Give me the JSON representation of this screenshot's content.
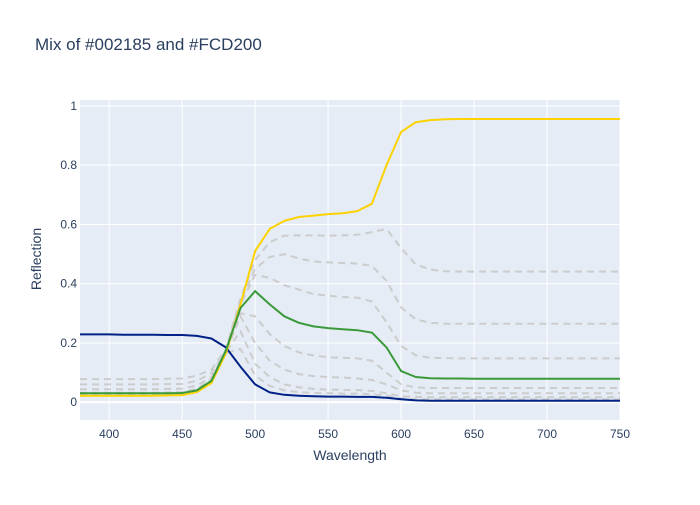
{
  "chart_data": {
    "type": "line",
    "title": "Mix of #002185 and #FCD200",
    "xlabel": "Wavelength",
    "ylabel": "Reflection",
    "xlim": [
      380,
      750
    ],
    "ylim": [
      -0.06,
      1.02
    ],
    "x_ticks": [
      400,
      450,
      500,
      550,
      600,
      650,
      700,
      750
    ],
    "y_ticks": [
      0,
      0.2,
      0.4,
      0.6,
      0.8,
      1
    ],
    "y_tick_labels": [
      "0",
      "0.2",
      "0.4",
      "0.6",
      "0.8",
      "1"
    ],
    "x": [
      380,
      390,
      400,
      410,
      420,
      430,
      440,
      450,
      460,
      470,
      480,
      490,
      500,
      510,
      520,
      530,
      540,
      550,
      560,
      570,
      580,
      590,
      600,
      610,
      620,
      630,
      640,
      650,
      660,
      670,
      680,
      690,
      700,
      710,
      720,
      730,
      740,
      750
    ],
    "background": "#e5ecf6",
    "grid": true,
    "legend": "none",
    "series": [
      {
        "role": "endpoint",
        "color": "#002185",
        "dash": false,
        "values": [
          0.229,
          0.229,
          0.229,
          0.228,
          0.228,
          0.228,
          0.227,
          0.227,
          0.224,
          0.215,
          0.185,
          0.12,
          0.06,
          0.033,
          0.025,
          0.022,
          0.02,
          0.019,
          0.019,
          0.018,
          0.018,
          0.015,
          0.01,
          0.006,
          0.005,
          0.005,
          0.005,
          0.005,
          0.005,
          0.005,
          0.005,
          0.005,
          0.005,
          0.005,
          0.005,
          0.005,
          0.005,
          0.005
        ]
      },
      {
        "role": "endpoint",
        "color": "#FCD200",
        "dash": false,
        "values": [
          0.022,
          0.022,
          0.022,
          0.022,
          0.022,
          0.022,
          0.023,
          0.024,
          0.034,
          0.065,
          0.165,
          0.33,
          0.51,
          0.585,
          0.612,
          0.625,
          0.63,
          0.635,
          0.638,
          0.645,
          0.67,
          0.8,
          0.912,
          0.945,
          0.952,
          0.955,
          0.956,
          0.956,
          0.956,
          0.956,
          0.956,
          0.956,
          0.956,
          0.956,
          0.956,
          0.956,
          0.956,
          0.956
        ]
      },
      {
        "role": "mix",
        "color": "#3a9a3a",
        "dash": false,
        "values": [
          0.03,
          0.03,
          0.03,
          0.03,
          0.03,
          0.03,
          0.03,
          0.031,
          0.04,
          0.072,
          0.175,
          0.318,
          0.375,
          0.33,
          0.29,
          0.268,
          0.256,
          0.25,
          0.246,
          0.243,
          0.235,
          0.185,
          0.105,
          0.085,
          0.081,
          0.08,
          0.08,
          0.079,
          0.079,
          0.079,
          0.079,
          0.079,
          0.079,
          0.079,
          0.079,
          0.079,
          0.079,
          0.079
        ]
      },
      {
        "role": "mix",
        "color": "#cccccc",
        "dash": true,
        "values": [
          0.078,
          0.078,
          0.078,
          0.078,
          0.078,
          0.078,
          0.079,
          0.08,
          0.09,
          0.11,
          0.18,
          0.35,
          0.48,
          0.54,
          0.562,
          0.563,
          0.563,
          0.562,
          0.563,
          0.565,
          0.574,
          0.585,
          0.52,
          0.465,
          0.448,
          0.442,
          0.441,
          0.441,
          0.441,
          0.441,
          0.441,
          0.441,
          0.441,
          0.441,
          0.441,
          0.441,
          0.441,
          0.441
        ]
      },
      {
        "role": "mix",
        "color": "#cccccc",
        "dash": true,
        "values": [
          0.06,
          0.06,
          0.06,
          0.06,
          0.06,
          0.06,
          0.061,
          0.062,
          0.072,
          0.098,
          0.175,
          0.34,
          0.45,
          0.49,
          0.5,
          0.485,
          0.475,
          0.472,
          0.47,
          0.468,
          0.46,
          0.41,
          0.32,
          0.28,
          0.268,
          0.265,
          0.265,
          0.265,
          0.265,
          0.265,
          0.265,
          0.265,
          0.265,
          0.265,
          0.265,
          0.265,
          0.265,
          0.265
        ]
      },
      {
        "role": "mix",
        "color": "#cccccc",
        "dash": true,
        "values": [
          0.044,
          0.044,
          0.044,
          0.044,
          0.044,
          0.044,
          0.045,
          0.046,
          0.056,
          0.085,
          0.172,
          0.33,
          0.43,
          0.42,
          0.395,
          0.38,
          0.365,
          0.36,
          0.355,
          0.353,
          0.34,
          0.27,
          0.19,
          0.158,
          0.15,
          0.149,
          0.148,
          0.148,
          0.148,
          0.148,
          0.148,
          0.148,
          0.148,
          0.148,
          0.148,
          0.148,
          0.148,
          0.148
        ]
      },
      {
        "role": "mix",
        "color": "#cccccc",
        "dash": true,
        "values": [
          0.032,
          0.032,
          0.032,
          0.032,
          0.032,
          0.032,
          0.033,
          0.034,
          0.045,
          0.078,
          0.168,
          0.3,
          0.29,
          0.23,
          0.19,
          0.168,
          0.158,
          0.152,
          0.15,
          0.148,
          0.14,
          0.1,
          0.06,
          0.05,
          0.048,
          0.048,
          0.048,
          0.048,
          0.048,
          0.048,
          0.048,
          0.048,
          0.048,
          0.048,
          0.048,
          0.048,
          0.048,
          0.048
        ]
      },
      {
        "role": "mix",
        "color": "#cccccc",
        "dash": true,
        "values": [
          0.028,
          0.028,
          0.028,
          0.028,
          0.028,
          0.028,
          0.029,
          0.03,
          0.042,
          0.075,
          0.17,
          0.29,
          0.2,
          0.14,
          0.11,
          0.095,
          0.088,
          0.085,
          0.083,
          0.08,
          0.075,
          0.06,
          0.04,
          0.032,
          0.03,
          0.03,
          0.03,
          0.03,
          0.03,
          0.03,
          0.03,
          0.03,
          0.03,
          0.03,
          0.03,
          0.03,
          0.03,
          0.03
        ]
      },
      {
        "role": "mix",
        "color": "#cccccc",
        "dash": true,
        "values": [
          0.026,
          0.026,
          0.026,
          0.026,
          0.026,
          0.026,
          0.027,
          0.028,
          0.04,
          0.072,
          0.168,
          0.24,
          0.13,
          0.085,
          0.06,
          0.05,
          0.045,
          0.043,
          0.042,
          0.041,
          0.038,
          0.03,
          0.02,
          0.018,
          0.017,
          0.017,
          0.017,
          0.017,
          0.017,
          0.017,
          0.017,
          0.017,
          0.017,
          0.017,
          0.017,
          0.017,
          0.017,
          0.017
        ]
      },
      {
        "role": "mix",
        "color": "#cccccc",
        "dash": true,
        "values": [
          0.024,
          0.024,
          0.024,
          0.024,
          0.024,
          0.024,
          0.025,
          0.026,
          0.036,
          0.068,
          0.166,
          0.18,
          0.09,
          0.055,
          0.04,
          0.034,
          0.031,
          0.03,
          0.029,
          0.029,
          0.027,
          0.022,
          0.013,
          0.01,
          0.01,
          0.01,
          0.01,
          0.01,
          0.01,
          0.01,
          0.01,
          0.01,
          0.01,
          0.01,
          0.01,
          0.01,
          0.01,
          0.01
        ]
      }
    ]
  }
}
